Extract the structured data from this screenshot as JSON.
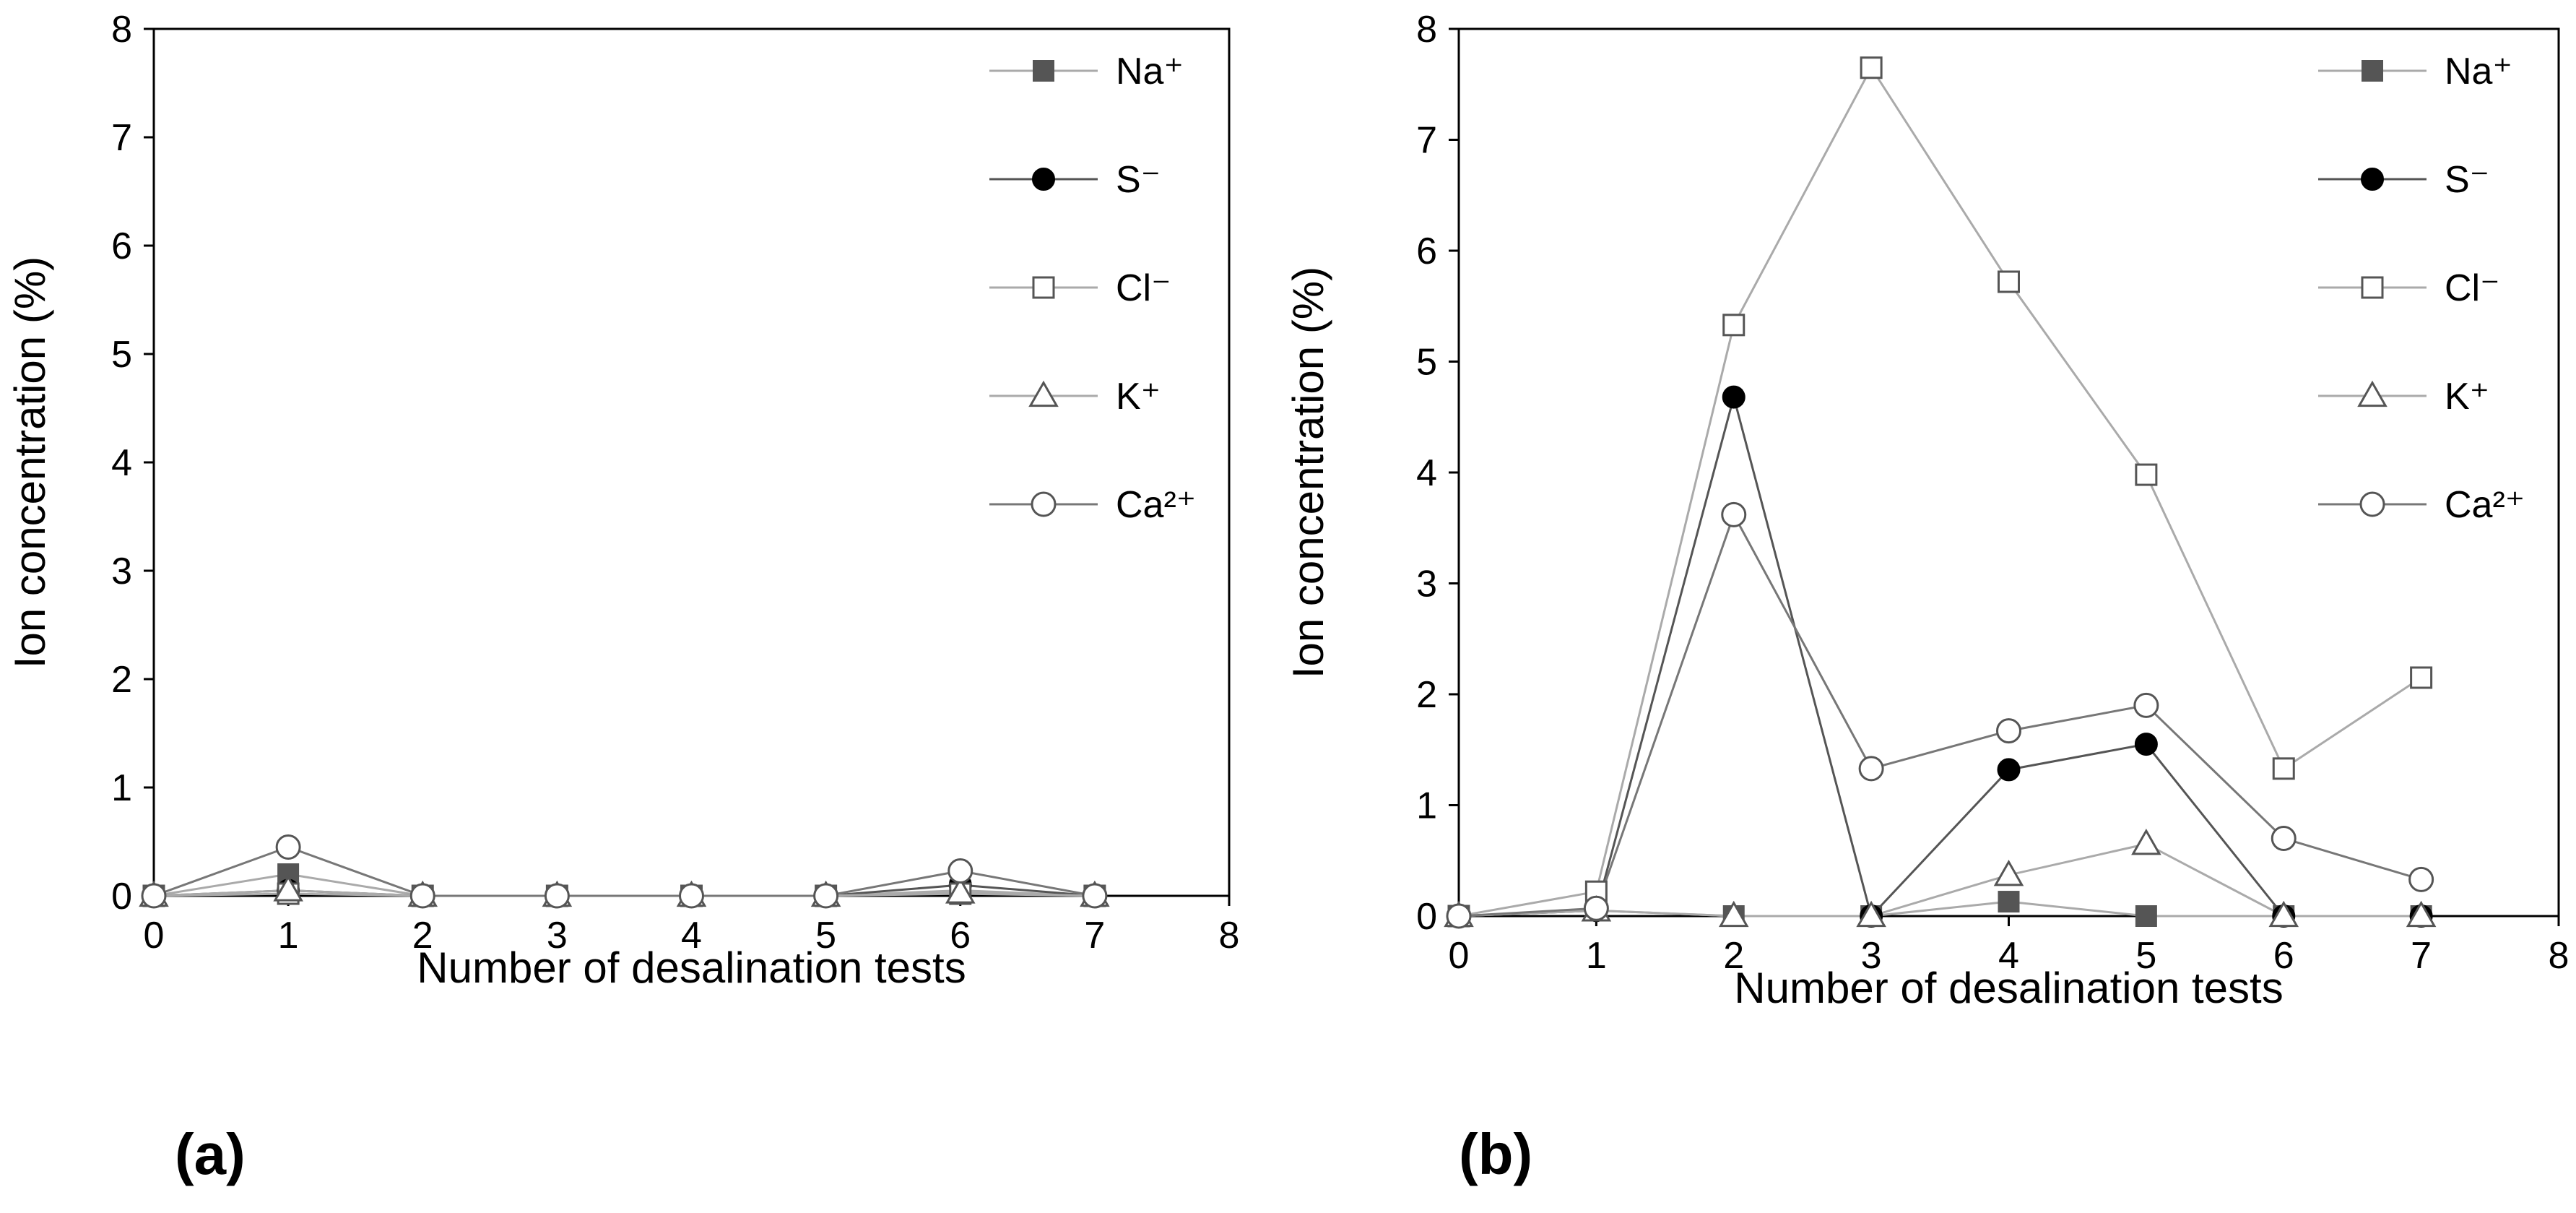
{
  "chart_data": [
    {
      "type": "line",
      "panel_label": "(a)",
      "xlabel": "Number of desalination tests",
      "ylabel": "Ion concentration (%)",
      "xlim": [
        0,
        8
      ],
      "ylim": [
        0,
        8
      ],
      "xticks": [
        0,
        1,
        2,
        3,
        4,
        5,
        6,
        7,
        8
      ],
      "yticks": [
        0,
        1,
        2,
        3,
        4,
        5,
        6,
        7,
        8
      ],
      "grid": false,
      "legend_position": "top-right",
      "series": [
        {
          "name": "Na⁺",
          "marker": "square-filled",
          "line_color": "#aaaaaa",
          "x": [
            0,
            1,
            2,
            3,
            4,
            5,
            6,
            7
          ],
          "y": [
            0,
            0.2,
            0,
            0,
            0,
            0,
            0.05,
            0
          ]
        },
        {
          "name": "S⁻",
          "marker": "circle-filled",
          "line_color": "#555555",
          "x": [
            0,
            1,
            2,
            3,
            4,
            5,
            6,
            7
          ],
          "y": [
            0,
            0.05,
            0,
            0,
            0,
            0,
            0.1,
            0
          ]
        },
        {
          "name": "Cl⁻",
          "marker": "square-open",
          "line_color": "#aaaaaa",
          "x": [
            0,
            1,
            2,
            3,
            4,
            5,
            6,
            7
          ],
          "y": [
            0,
            0.02,
            0,
            0,
            0,
            0,
            0.02,
            0
          ]
        },
        {
          "name": "K⁺",
          "marker": "triangle-open",
          "line_color": "#aaaaaa",
          "x": [
            0,
            1,
            2,
            3,
            4,
            5,
            6,
            7
          ],
          "y": [
            0,
            0.05,
            0,
            0,
            0,
            0,
            0.03,
            0
          ]
        },
        {
          "name": "Ca²⁺",
          "marker": "circle-open",
          "line_color": "#777777",
          "x": [
            0,
            1,
            2,
            3,
            4,
            5,
            6,
            7
          ],
          "y": [
            0,
            0.45,
            0,
            0,
            0,
            0,
            0.23,
            0
          ]
        }
      ]
    },
    {
      "type": "line",
      "panel_label": "(b)",
      "xlabel": "Number of desalination tests",
      "ylabel": "Ion concentration (%)",
      "xlim": [
        0,
        8
      ],
      "ylim": [
        0,
        8
      ],
      "xticks": [
        0,
        1,
        2,
        3,
        4,
        5,
        6,
        7,
        8
      ],
      "yticks": [
        0,
        1,
        2,
        3,
        4,
        5,
        6,
        7,
        8
      ],
      "grid": false,
      "legend_position": "top-right",
      "series": [
        {
          "name": "Na⁺",
          "marker": "square-filled",
          "line_color": "#aaaaaa",
          "x": [
            0,
            1,
            2,
            3,
            4,
            5,
            6,
            7
          ],
          "y": [
            0,
            0.05,
            0,
            0,
            0.13,
            0,
            0,
            0
          ]
        },
        {
          "name": "S⁻",
          "marker": "circle-filled",
          "line_color": "#555555",
          "x": [
            0,
            1,
            2,
            3,
            4,
            5,
            6,
            7
          ],
          "y": [
            0,
            0.05,
            4.68,
            0,
            1.32,
            1.55,
            0,
            0
          ]
        },
        {
          "name": "Cl⁻",
          "marker": "square-open",
          "line_color": "#aaaaaa",
          "x": [
            0,
            1,
            2,
            3,
            4,
            5,
            6,
            7
          ],
          "y": [
            0,
            0.22,
            5.33,
            7.65,
            5.72,
            3.98,
            1.33,
            2.15
          ]
        },
        {
          "name": "K⁺",
          "marker": "triangle-open",
          "line_color": "#aaaaaa",
          "x": [
            0,
            1,
            2,
            3,
            4,
            5,
            6,
            7
          ],
          "y": [
            0,
            0.05,
            0,
            0,
            0.37,
            0.65,
            0,
            0
          ]
        },
        {
          "name": "Ca²⁺",
          "marker": "circle-open",
          "line_color": "#777777",
          "x": [
            0,
            1,
            2,
            3,
            4,
            5,
            6,
            7
          ],
          "y": [
            0,
            0.07,
            3.62,
            1.33,
            1.67,
            1.9,
            0.7,
            0.33
          ]
        }
      ]
    }
  ]
}
